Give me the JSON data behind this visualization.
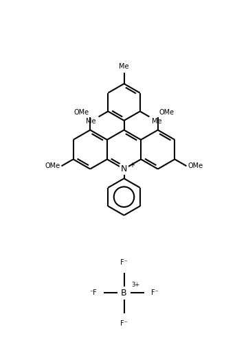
{
  "background": "#ffffff",
  "line_color": "#000000",
  "line_width": 1.5,
  "font_size": 8,
  "figure_size": [
    3.61,
    5.31
  ],
  "dpi": 100,
  "xlim": [
    0,
    9.0
  ],
  "ylim": [
    0,
    13.2
  ]
}
